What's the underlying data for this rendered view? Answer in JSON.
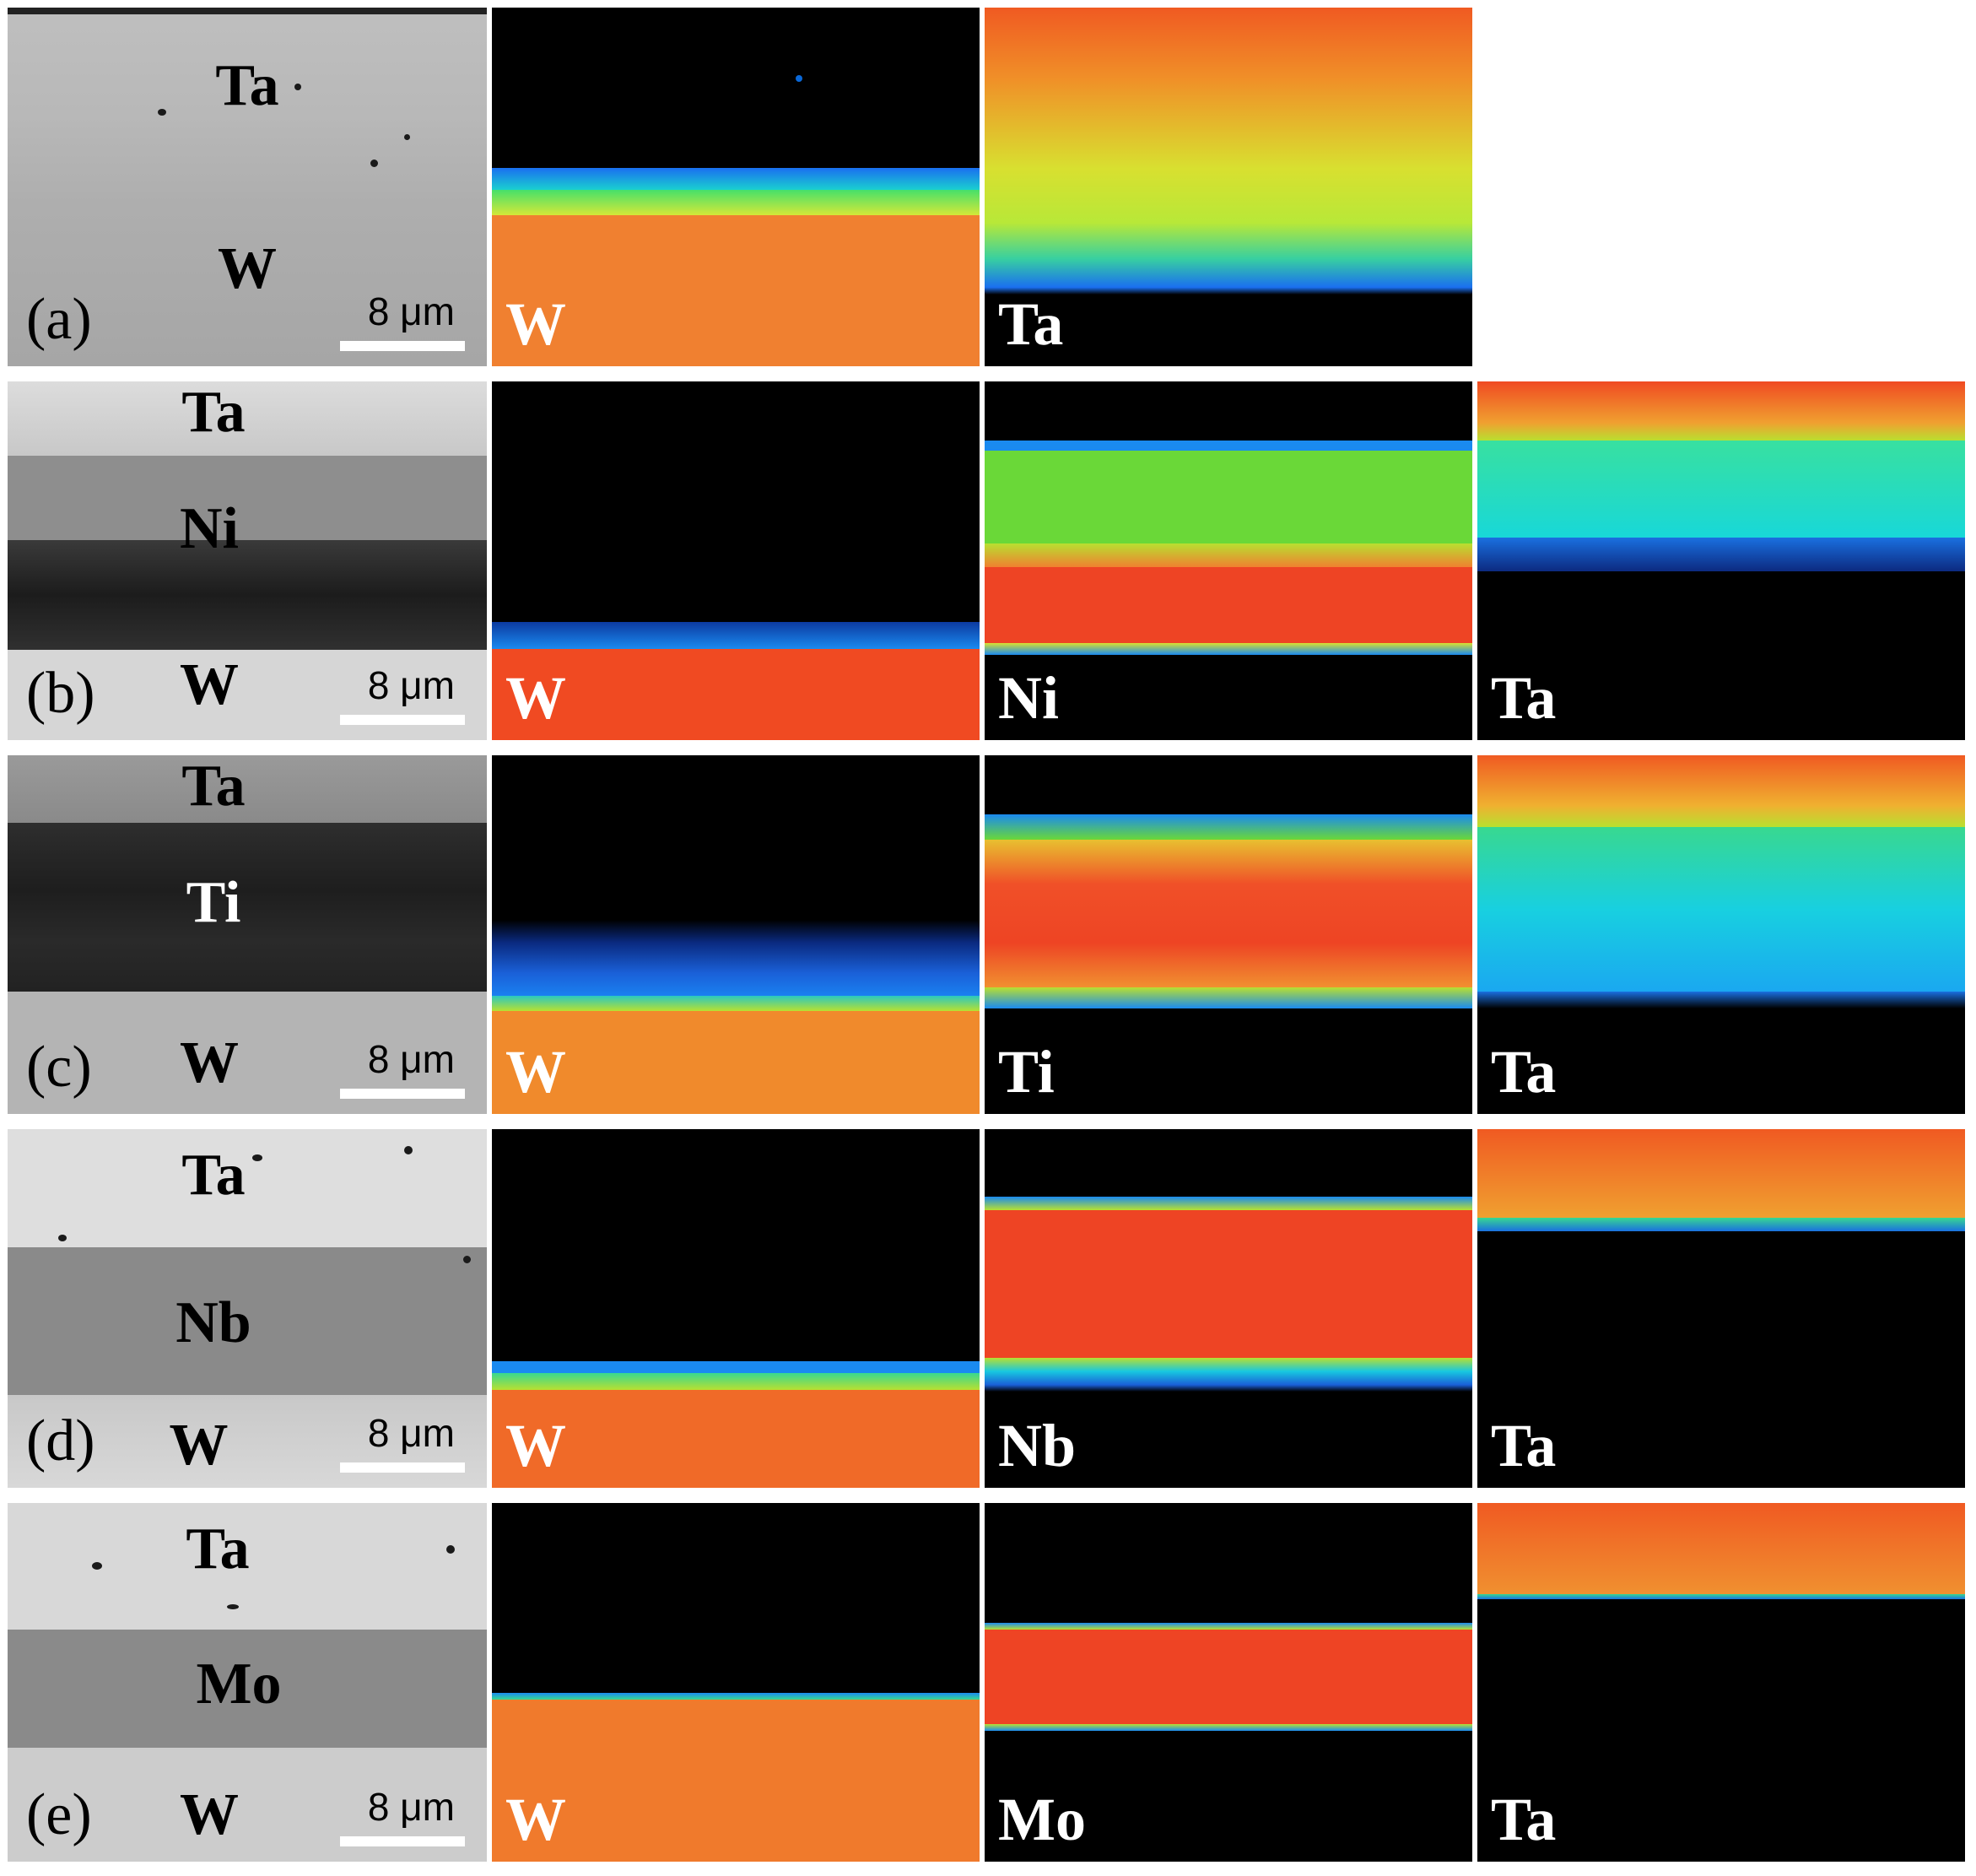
{
  "rows": [
    {
      "id": "(a)",
      "scale": "8 μm",
      "sem_labels": [
        "Ta",
        "W"
      ],
      "maps": [
        "W",
        "Ta"
      ]
    },
    {
      "id": "(b)",
      "scale": "8 μm",
      "sem_labels": [
        "Ta",
        "Ni",
        "W"
      ],
      "maps": [
        "W",
        "Ni",
        "Ta"
      ]
    },
    {
      "id": "(c)",
      "scale": "8 μm",
      "sem_labels": [
        "Ta",
        "Ti",
        "W"
      ],
      "maps": [
        "W",
        "Ti",
        "Ta"
      ]
    },
    {
      "id": "(d)",
      "scale": "8 μm",
      "sem_labels": [
        "Ta",
        "Nb",
        "W"
      ],
      "maps": [
        "W",
        "Nb",
        "Ta"
      ]
    },
    {
      "id": "(e)",
      "scale": "8 μm",
      "sem_labels": [
        "Ta",
        "Mo",
        "W"
      ],
      "maps": [
        "W",
        "Mo",
        "Ta"
      ]
    }
  ],
  "colors": {
    "background": "#ffffff",
    "map_black": "#000000",
    "high": "#f0421c",
    "mid": "#8ee84a",
    "low": "#1aa8f0"
  }
}
